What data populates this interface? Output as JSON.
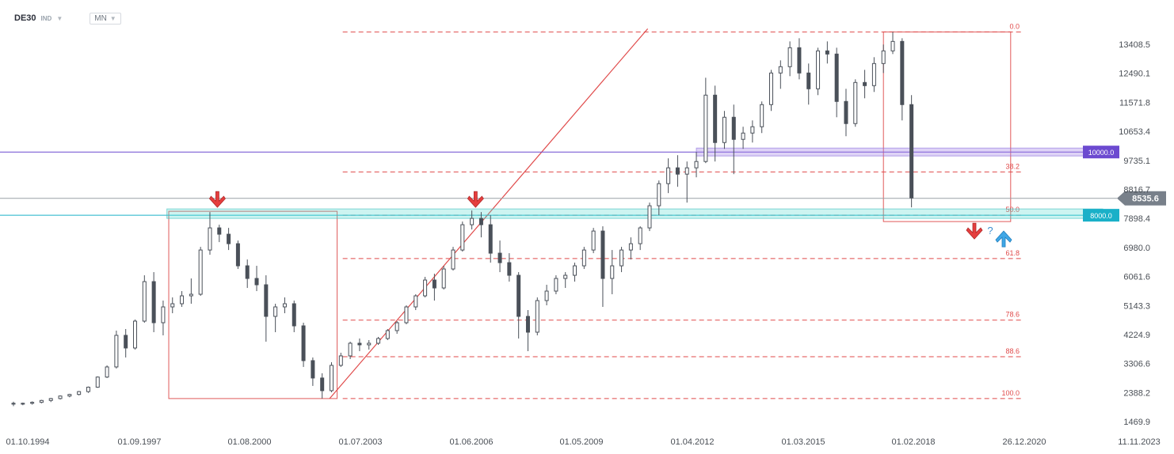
{
  "header": {
    "symbol": "DE30",
    "instrument_class": "IND",
    "timeframe": "MN"
  },
  "colors": {
    "candle": "#4a5059",
    "fib_line": "#e04a4a",
    "resistance_line": "#6c4ad0",
    "support_line": "#1ab0c8",
    "price_badge": "#78808a",
    "arrow_down": "#e53e3e",
    "arrow_up": "#3fa7e6"
  },
  "chart_data": {
    "type": "candlestick",
    "symbol": "DE30",
    "timeframe": "MN",
    "x_tick_labels": [
      "01.10.1994",
      "01.09.1997",
      "01.08.2000",
      "01.07.2003",
      "01.06.2006",
      "01.05.2009",
      "01.04.2012",
      "01.03.2015",
      "01.02.2018",
      "26.12.2020",
      "11.11.2023"
    ],
    "y_tick_labels": [
      "13408.5",
      "12490.1",
      "11571.8",
      "10653.4",
      "9735.1",
      "8816.7",
      "7898.4",
      "6980.0",
      "6061.6",
      "5143.3",
      "4224.9",
      "3306.6",
      "2388.2",
      "1469.9"
    ],
    "ylim": [
      1469.9,
      14000
    ],
    "last_price": "8535.6",
    "series": [
      {
        "values": [
          [
            1994.75,
            2050,
            2100,
            1960,
            2030
          ],
          [
            1995.0,
            2030,
            2070,
            1990,
            2050
          ],
          [
            1995.25,
            2050,
            2110,
            2010,
            2080
          ],
          [
            1995.5,
            2080,
            2160,
            2050,
            2140
          ],
          [
            1995.75,
            2140,
            2220,
            2090,
            2200
          ],
          [
            1996.0,
            2200,
            2300,
            2170,
            2280
          ],
          [
            1996.25,
            2280,
            2350,
            2240,
            2330
          ],
          [
            1996.5,
            2330,
            2440,
            2300,
            2420
          ],
          [
            1996.75,
            2420,
            2580,
            2380,
            2560
          ],
          [
            1997.0,
            2560,
            2900,
            2540,
            2880
          ],
          [
            1997.25,
            2880,
            3250,
            2850,
            3200
          ],
          [
            1997.5,
            3200,
            4350,
            3150,
            4200
          ],
          [
            1997.75,
            4200,
            4400,
            3500,
            3800
          ],
          [
            1998.0,
            3800,
            4700,
            3750,
            4650
          ],
          [
            1998.25,
            4650,
            6100,
            4600,
            5900
          ],
          [
            1998.5,
            5900,
            6200,
            4300,
            4600
          ],
          [
            1998.75,
            4600,
            5300,
            4200,
            5100
          ],
          [
            1999.0,
            5100,
            5400,
            4900,
            5200
          ],
          [
            1999.25,
            5200,
            5600,
            5100,
            5450
          ],
          [
            1999.5,
            5450,
            6000,
            5200,
            5500
          ],
          [
            1999.75,
            5500,
            7000,
            5450,
            6900
          ],
          [
            2000.0,
            6900,
            8100,
            6750,
            7600
          ],
          [
            2000.25,
            7600,
            7700,
            7150,
            7400
          ],
          [
            2000.5,
            7400,
            7600,
            6900,
            7100
          ],
          [
            2000.75,
            7100,
            7200,
            6300,
            6400
          ],
          [
            2001.0,
            6400,
            6600,
            5700,
            6000
          ],
          [
            2001.25,
            6000,
            6400,
            5600,
            5800
          ],
          [
            2001.5,
            5800,
            6100,
            4000,
            4800
          ],
          [
            2001.75,
            4800,
            5200,
            4300,
            5100
          ],
          [
            2002.0,
            5100,
            5400,
            4900,
            5200
          ],
          [
            2002.25,
            5200,
            5300,
            4300,
            4500
          ],
          [
            2002.5,
            4500,
            4600,
            3200,
            3400
          ],
          [
            2002.75,
            3400,
            3500,
            2600,
            2850
          ],
          [
            2003.0,
            2850,
            3000,
            2200,
            2450
          ],
          [
            2003.25,
            2450,
            3350,
            2400,
            3250
          ],
          [
            2003.5,
            3250,
            3650,
            3200,
            3550
          ],
          [
            2003.75,
            3550,
            4000,
            3450,
            3950
          ],
          [
            2004.0,
            3950,
            4100,
            3700,
            3900
          ],
          [
            2004.25,
            3900,
            4050,
            3750,
            3950
          ],
          [
            2004.5,
            3950,
            4150,
            3900,
            4100
          ],
          [
            2004.75,
            4100,
            4400,
            4050,
            4350
          ],
          [
            2005.0,
            4350,
            4650,
            4250,
            4600
          ],
          [
            2005.25,
            4600,
            5150,
            4550,
            5100
          ],
          [
            2005.5,
            5100,
            5500,
            5000,
            5450
          ],
          [
            2005.75,
            5450,
            6050,
            5400,
            5950
          ],
          [
            2006.0,
            5950,
            6150,
            5300,
            5700
          ],
          [
            2006.25,
            5700,
            6400,
            5650,
            6300
          ],
          [
            2006.5,
            6300,
            7000,
            6250,
            6900
          ],
          [
            2006.75,
            6900,
            7800,
            6850,
            7700
          ],
          [
            2007.0,
            7700,
            8150,
            7550,
            7900
          ],
          [
            2007.25,
            7900,
            8100,
            7300,
            7700
          ],
          [
            2007.5,
            7700,
            8000,
            6500,
            6800
          ],
          [
            2007.75,
            6800,
            7200,
            6200,
            6500
          ],
          [
            2008.0,
            6500,
            6800,
            5900,
            6100
          ],
          [
            2008.25,
            6100,
            6200,
            4100,
            4800
          ],
          [
            2008.5,
            4800,
            5000,
            3700,
            4300
          ],
          [
            2008.75,
            4300,
            5400,
            4200,
            5300
          ],
          [
            2009.0,
            5300,
            5800,
            5150,
            5600
          ],
          [
            2009.25,
            5600,
            6100,
            5500,
            6000
          ],
          [
            2009.5,
            6000,
            6200,
            5700,
            6100
          ],
          [
            2009.75,
            6100,
            6500,
            5900,
            6400
          ],
          [
            2010.0,
            6400,
            7000,
            6300,
            6900
          ],
          [
            2010.25,
            6900,
            7600,
            6800,
            7500
          ],
          [
            2010.5,
            7500,
            7650,
            5100,
            6000
          ],
          [
            2010.75,
            6000,
            6900,
            5500,
            6400
          ],
          [
            2011.0,
            6400,
            7000,
            6200,
            6900
          ],
          [
            2011.25,
            6900,
            7300,
            6600,
            7100
          ],
          [
            2011.5,
            7100,
            7650,
            6900,
            7600
          ],
          [
            2011.75,
            7600,
            8400,
            7500,
            8300
          ],
          [
            2012.0,
            8300,
            9100,
            8000,
            9000
          ],
          [
            2012.25,
            9000,
            9800,
            8700,
            9500
          ],
          [
            2012.5,
            9500,
            9900,
            8900,
            9300
          ],
          [
            2012.75,
            9300,
            9700,
            8400,
            9500
          ],
          [
            2013.0,
            9500,
            10000,
            9200,
            9700
          ],
          [
            2013.25,
            9700,
            12350,
            9650,
            11800
          ],
          [
            2013.5,
            11800,
            12100,
            9700,
            10300
          ],
          [
            2013.75,
            10300,
            11300,
            10100,
            11100
          ],
          [
            2014.0,
            11100,
            11500,
            9300,
            10400
          ],
          [
            2014.25,
            10400,
            10800,
            10100,
            10600
          ],
          [
            2014.5,
            10600,
            11000,
            10300,
            10800
          ],
          [
            2014.75,
            10800,
            11600,
            10600,
            11500
          ],
          [
            2015.0,
            11500,
            12600,
            11300,
            12500
          ],
          [
            2015.25,
            12500,
            12900,
            12000,
            12700
          ],
          [
            2015.5,
            12700,
            13500,
            12400,
            13300
          ],
          [
            2015.75,
            13300,
            13600,
            12300,
            12500
          ],
          [
            2016.0,
            12500,
            12800,
            11500,
            12000
          ],
          [
            2016.25,
            12000,
            13300,
            11800,
            13200
          ],
          [
            2016.5,
            13200,
            13500,
            12800,
            13100
          ],
          [
            2016.75,
            13100,
            13300,
            11100,
            11600
          ],
          [
            2017.0,
            11600,
            12000,
            10500,
            10900
          ],
          [
            2017.25,
            10900,
            12300,
            10800,
            12200
          ],
          [
            2017.5,
            12200,
            12600,
            11700,
            12100
          ],
          [
            2017.75,
            12100,
            13000,
            11900,
            12800
          ],
          [
            2018.0,
            12800,
            13400,
            12500,
            13200
          ],
          [
            2018.25,
            13200,
            13800,
            13100,
            13500
          ],
          [
            2018.5,
            13500,
            13600,
            11000,
            11500
          ],
          [
            2018.75,
            11500,
            11800,
            8250,
            8550
          ]
        ]
      }
    ],
    "horizontal_levels": [
      {
        "label": "10000.0",
        "price": 10000.0
      },
      {
        "label": "8000.0",
        "price": 8000.0
      },
      {
        "label": "8535.6",
        "price": 8535.6
      }
    ],
    "fibonacci": {
      "from_price": 2200,
      "to_price": 13800,
      "levels": [
        {
          "label": "0.0",
          "ratio": 0.0
        },
        {
          "label": "38.2",
          "ratio": 0.382
        },
        {
          "label": "50.0",
          "ratio": 0.5
        },
        {
          "label": "61.8",
          "ratio": 0.618
        },
        {
          "label": "78.6",
          "ratio": 0.786
        },
        {
          "label": "88.6",
          "ratio": 0.886
        },
        {
          "label": "100.0",
          "ratio": 1.0
        }
      ]
    },
    "annotations": {
      "question_mark": "?"
    }
  }
}
